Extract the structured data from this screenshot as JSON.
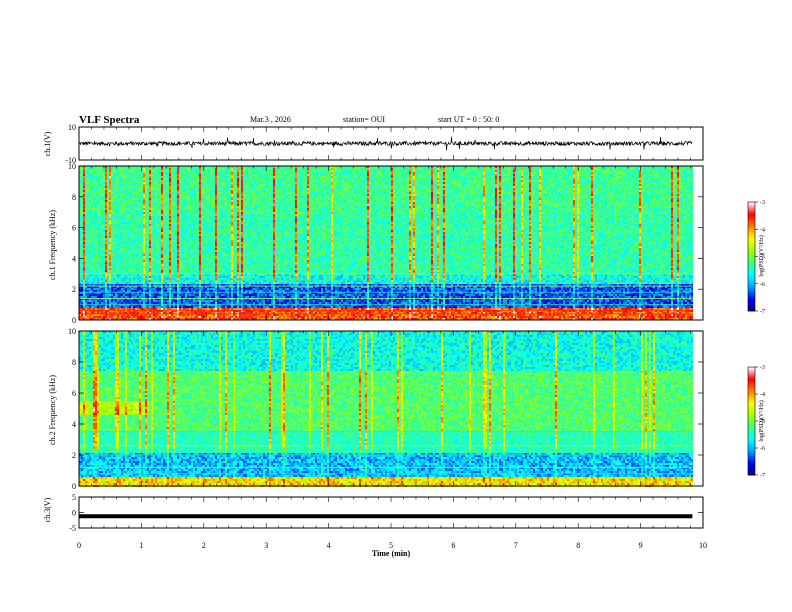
{
  "header": {
    "title": "VLF Spectra",
    "date": "Mar.3 , 2026",
    "station": "station= OUI",
    "start_ut": "start UT = 0 : 50: 0"
  },
  "chart_data": [
    {
      "type": "line",
      "name": "ch1-waveform",
      "ylabel": "ch.1(V)",
      "ylim": [
        -10,
        10
      ],
      "yticks": [
        "10",
        "-10"
      ],
      "baseline_v": 0,
      "xlim": [
        0,
        10
      ]
    },
    {
      "type": "heatmap",
      "name": "ch1-spectrogram",
      "ylabel": "ch.1 Frequency (kHz)",
      "ylim": [
        0,
        10
      ],
      "yticks": [
        "0",
        "2",
        "4",
        "6",
        "8",
        "10"
      ],
      "xlim": [
        0,
        10
      ],
      "data_end_min": 9.83,
      "colorbar": {
        "label": "log(PSD)(V²/Hz)",
        "range": [
          -7,
          -3
        ],
        "ticks": [
          "-3",
          "-4",
          "-5",
          "-6",
          "-7"
        ]
      },
      "bands_khz": [
        0.4,
        0.6,
        1.0,
        1.4,
        1.8,
        2.2,
        2.6,
        3.0
      ]
    },
    {
      "type": "heatmap",
      "name": "ch2-spectrogram",
      "ylabel": "ch.2 Frequency (kHz)",
      "ylim": [
        0,
        10
      ],
      "yticks": [
        "0",
        "2",
        "4",
        "6",
        "8",
        "10"
      ],
      "xlim": [
        0,
        10
      ],
      "data_end_min": 9.83,
      "colorbar": {
        "label": "log(PSD)(V²/Hz)",
        "range": [
          -7,
          -3
        ],
        "ticks": [
          "-3",
          "-4",
          "-5",
          "-6",
          "-7"
        ]
      },
      "bands_khz": [
        0.8,
        1.2,
        2.0,
        2.6,
        3.5
      ]
    },
    {
      "type": "line",
      "name": "ch3-waveform",
      "ylabel": "ch.3(V)",
      "ylim": [
        -5,
        5
      ],
      "yticks": [
        "5",
        "0",
        "-5"
      ],
      "value_v": -1.2,
      "xlim": [
        0,
        10
      ],
      "xlabel": "Time (min)",
      "xticks": [
        "0",
        "1",
        "2",
        "3",
        "4",
        "5",
        "6",
        "7",
        "8",
        "9",
        "10"
      ]
    }
  ],
  "colors": {
    "colormap": [
      "#000080",
      "#0000ff",
      "#00a0ff",
      "#00ffff",
      "#40ff80",
      "#a0ff00",
      "#ffff00",
      "#ff8000",
      "#ff0000",
      "#ffffff"
    ]
  }
}
